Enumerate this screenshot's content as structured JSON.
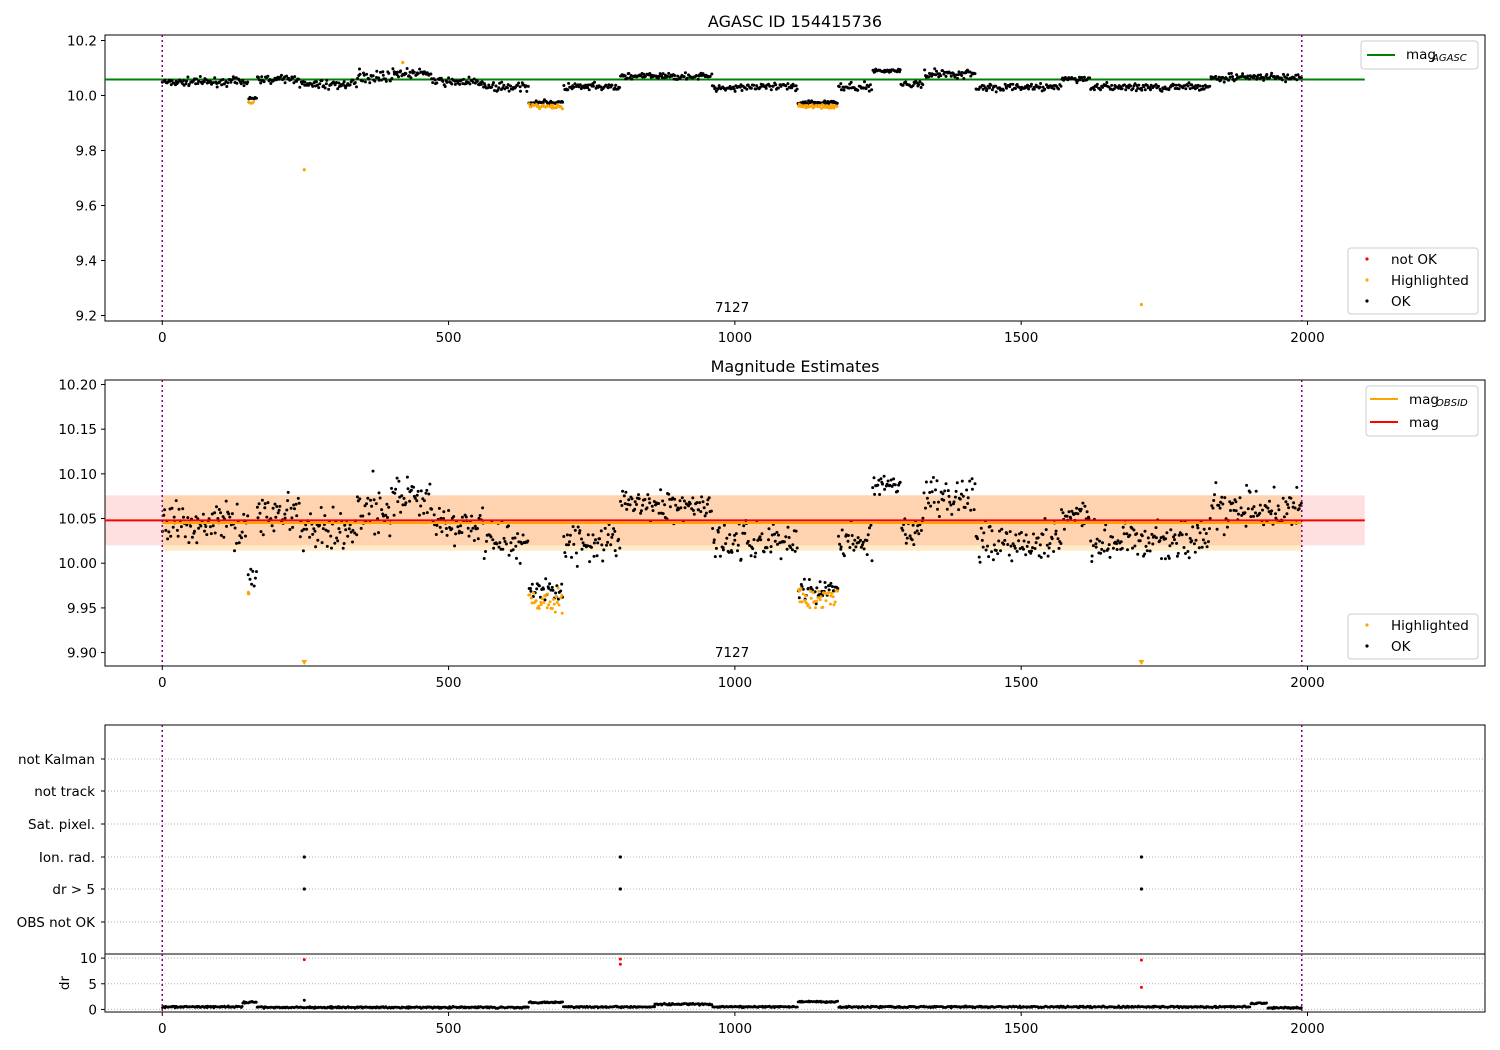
{
  "chart_data": [
    {
      "type": "scatter",
      "title": "AGASC ID 154415736",
      "xlim": [
        -100,
        2310
      ],
      "ylim": [
        9.18,
        10.22
      ],
      "xticks": [
        0,
        500,
        1000,
        1500,
        2000
      ],
      "yticks": [
        "9.2",
        "9.4",
        "9.6",
        "9.8",
        "10.0",
        "10.2"
      ],
      "obs_boundaries": [
        0,
        1990
      ],
      "annotation": {
        "text": "7127",
        "x": 995,
        "y": 9.21
      },
      "hline": {
        "name": "mag",
        "subscript": "AGASC",
        "value": 10.058,
        "xmin": -100,
        "xmax": 2100,
        "color": "#008000"
      },
      "legend_top": [
        {
          "label": "mag",
          "subscript": "AGASC",
          "color": "#008000"
        }
      ],
      "legend_bottom": [
        {
          "label": "not OK",
          "color": "#ff0000"
        },
        {
          "label": "Highlighted",
          "color": "#ffa500"
        },
        {
          "label": "OK",
          "color": "#000000"
        }
      ],
      "segments": [
        {
          "x0": 0,
          "x1": 150,
          "mean": 10.05,
          "spread": 0.02
        },
        {
          "x0": 150,
          "x1": 165,
          "mean": 9.99,
          "spread": 0.01
        },
        {
          "x0": 165,
          "x1": 240,
          "mean": 10.06,
          "spread": 0.018
        },
        {
          "x0": 240,
          "x1": 340,
          "mean": 10.04,
          "spread": 0.02
        },
        {
          "x0": 340,
          "x1": 400,
          "mean": 10.07,
          "spread": 0.03
        },
        {
          "x0": 400,
          "x1": 470,
          "mean": 10.08,
          "spread": 0.02
        },
        {
          "x0": 470,
          "x1": 560,
          "mean": 10.05,
          "spread": 0.02
        },
        {
          "x0": 560,
          "x1": 640,
          "mean": 10.03,
          "spread": 0.02
        },
        {
          "x0": 640,
          "x1": 700,
          "mean": 9.975,
          "spread": 0.01
        },
        {
          "x0": 700,
          "x1": 800,
          "mean": 10.03,
          "spread": 0.02
        },
        {
          "x0": 800,
          "x1": 960,
          "mean": 10.07,
          "spread": 0.015
        },
        {
          "x0": 960,
          "x1": 1110,
          "mean": 10.03,
          "spread": 0.02
        },
        {
          "x0": 1110,
          "x1": 1180,
          "mean": 9.975,
          "spread": 0.01
        },
        {
          "x0": 1180,
          "x1": 1240,
          "mean": 10.03,
          "spread": 0.02
        },
        {
          "x0": 1240,
          "x1": 1290,
          "mean": 10.09,
          "spread": 0.01
        },
        {
          "x0": 1290,
          "x1": 1330,
          "mean": 10.04,
          "spread": 0.015
        },
        {
          "x0": 1330,
          "x1": 1420,
          "mean": 10.08,
          "spread": 0.02
        },
        {
          "x0": 1420,
          "x1": 1570,
          "mean": 10.03,
          "spread": 0.018
        },
        {
          "x0": 1570,
          "x1": 1620,
          "mean": 10.06,
          "spread": 0.015
        },
        {
          "x0": 1620,
          "x1": 1830,
          "mean": 10.03,
          "spread": 0.018
        },
        {
          "x0": 1830,
          "x1": 1990,
          "mean": 10.065,
          "spread": 0.02
        }
      ],
      "highlighted": [
        {
          "x0": 150,
          "x1": 160,
          "mean": 9.975,
          "spread": 0.005
        },
        {
          "x0": 640,
          "x1": 700,
          "mean": 9.96,
          "spread": 0.012
        },
        {
          "x0": 1110,
          "x1": 1180,
          "mean": 9.96,
          "spread": 0.01
        }
      ],
      "outliers": [
        {
          "x": 248,
          "y": 9.73,
          "color": "#ffa500"
        },
        {
          "x": 1710,
          "y": 9.24,
          "color": "#ffa500"
        },
        {
          "x": 420,
          "y": 10.12,
          "color": "#ffa500"
        }
      ]
    },
    {
      "type": "scatter",
      "title": "Magnitude Estimates",
      "xlim": [
        -100,
        2310
      ],
      "ylim": [
        9.885,
        10.205
      ],
      "xticks": [
        0,
        500,
        1000,
        1500,
        2000
      ],
      "yticks": [
        "9.90",
        "9.95",
        "10.00",
        "10.05",
        "10.10",
        "10.15",
        "10.20"
      ],
      "obs_boundaries": [
        0,
        1990
      ],
      "annotation": {
        "text": "7127",
        "x": 995,
        "y": 9.895
      },
      "mag_band": {
        "center": 10.048,
        "low": 10.02,
        "high": 10.076,
        "xmin": -100,
        "xmax": 2100
      },
      "obsid_band": {
        "center": 10.045,
        "low": 10.014,
        "high": 10.076,
        "xmin": 0,
        "xmax": 1990
      },
      "legend_top": [
        {
          "label": "mag",
          "subscript": "OBSID",
          "color": "#ffa500"
        },
        {
          "label": "mag",
          "subscript": "",
          "color": "#ff0000"
        }
      ],
      "legend_bottom": [
        {
          "label": "Highlighted",
          "color": "#ffa500"
        },
        {
          "label": "OK",
          "color": "#000000"
        }
      ],
      "below_range_markers": [
        248,
        1710
      ],
      "highlighted": [
        {
          "x0": 640,
          "x1": 700,
          "mean": 9.957,
          "spread": 0.012
        },
        {
          "x0": 1110,
          "x1": 1180,
          "mean": 9.96,
          "spread": 0.01
        },
        {
          "x0": 150,
          "x1": 150,
          "mean": 9.968,
          "spread": 0.002
        }
      ]
    },
    {
      "type": "scatter",
      "xlim": [
        -100,
        2310
      ],
      "categories": [
        "not Kalman",
        "not track",
        "Sat. pixel.",
        "Ion. rad.",
        "dr > 5",
        "OBS not OK"
      ],
      "flags": [
        {
          "category": "Ion. rad.",
          "x": [
            248,
            800,
            1710
          ]
        },
        {
          "category": "dr > 5",
          "x": [
            248,
            800,
            1710
          ]
        }
      ],
      "obs_boundaries": [
        0,
        1990
      ]
    },
    {
      "type": "scatter",
      "ylabel": "dr",
      "xlim": [
        -100,
        2310
      ],
      "ylim": [
        -0.5,
        10.8
      ],
      "xticks": [
        0,
        500,
        1000,
        1500,
        2000
      ],
      "yticks": [
        "0",
        "5",
        "10"
      ],
      "obs_boundaries": [
        0,
        1990
      ],
      "segments": [
        {
          "x0": 0,
          "x1": 140,
          "mean": 0.5
        },
        {
          "x0": 140,
          "x1": 165,
          "mean": 1.4
        },
        {
          "x0": 165,
          "x1": 640,
          "mean": 0.4
        },
        {
          "x0": 640,
          "x1": 700,
          "mean": 1.4
        },
        {
          "x0": 700,
          "x1": 860,
          "mean": 0.5
        },
        {
          "x0": 860,
          "x1": 960,
          "mean": 1.0
        },
        {
          "x0": 960,
          "x1": 1110,
          "mean": 0.5
        },
        {
          "x0": 1110,
          "x1": 1180,
          "mean": 1.5
        },
        {
          "x0": 1180,
          "x1": 1900,
          "mean": 0.5
        },
        {
          "x0": 1900,
          "x1": 1930,
          "mean": 1.2
        },
        {
          "x0": 1930,
          "x1": 1990,
          "mean": 0.3
        }
      ],
      "spikes": [
        {
          "x": 248,
          "y": 9.7,
          "color": "#ff0000"
        },
        {
          "x": 248,
          "y": 1.8,
          "color": "#000000"
        },
        {
          "x": 800,
          "y": 9.8,
          "color": "#ff0000"
        },
        {
          "x": 800,
          "y": 8.8,
          "color": "#ff0000"
        },
        {
          "x": 1710,
          "y": 9.6,
          "color": "#ff0000"
        },
        {
          "x": 1710,
          "y": 4.3,
          "color": "#ff0000"
        }
      ]
    }
  ]
}
